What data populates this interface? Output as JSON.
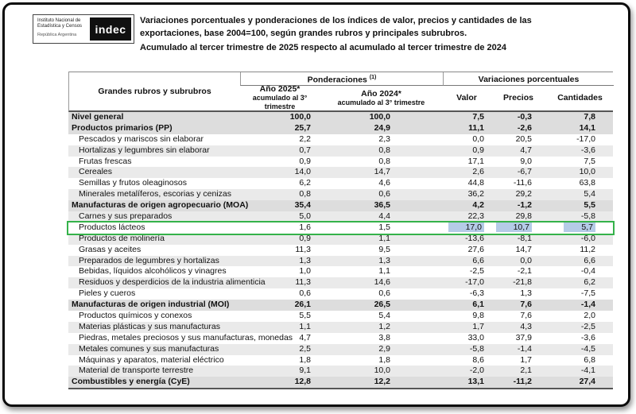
{
  "colors": {
    "highlight_border": "#35b24a",
    "selection_blue": "#b5cbe7",
    "stripe": "#eaeaea",
    "section_stripe": "#dddddd"
  },
  "logo": {
    "org_line1": "Instituto Nacional de",
    "org_line2": "Estadística y Censos",
    "org_line3": "República Argentina",
    "brand": "indec"
  },
  "titles": {
    "line1": "Variaciones porcentuales y ponderaciones de los índices de valor, precios y cantidades de las",
    "line2": "exportaciones, base 2004=100, según grandes rubros y principales subrubros.",
    "line3": "Acumulado al tercer trimestre de 2025 respecto al acumulado al tercer trimestre de 2024"
  },
  "table": {
    "label_header": "Grandes rubros y subrubros",
    "groups": {
      "ponderaciones": "Ponderaciones ",
      "ponderaciones_note": "(1)",
      "variaciones": "Variaciones porcentuales"
    },
    "columns": {
      "p2025_l1": "Año 2025*",
      "p2025_l2": "acumulado al 3° trimestre",
      "p2024_l1": "Año 2024*",
      "p2024_l2": "acumulado al 3° trimestre",
      "valor": "Valor",
      "precios": "Precios",
      "cantidades": "Cantidades"
    },
    "rows": [
      {
        "label": "Nivel general",
        "bold": true,
        "highlight": false,
        "p2025": "100,0",
        "p2024": "100,0",
        "valor": "7,5",
        "precios": "-0,3",
        "cantidades": "7,8"
      },
      {
        "label": "Productos primarios (PP)",
        "bold": true,
        "highlight": false,
        "p2025": "25,7",
        "p2024": "24,9",
        "valor": "11,1",
        "precios": "-2,6",
        "cantidades": "14,1"
      },
      {
        "label": "Pescados y mariscos sin elaborar",
        "bold": false,
        "highlight": false,
        "p2025": "2,2",
        "p2024": "2,3",
        "valor": "0,0",
        "precios": "20,5",
        "cantidades": "-17,0"
      },
      {
        "label": "Hortalizas y legumbres sin elaborar",
        "bold": false,
        "highlight": false,
        "p2025": "0,7",
        "p2024": "0,8",
        "valor": "0,9",
        "precios": "4,7",
        "cantidades": "-3,6"
      },
      {
        "label": "Frutas frescas",
        "bold": false,
        "highlight": false,
        "p2025": "0,9",
        "p2024": "0,8",
        "valor": "17,1",
        "precios": "9,0",
        "cantidades": "7,5"
      },
      {
        "label": "Cereales",
        "bold": false,
        "highlight": false,
        "p2025": "14,0",
        "p2024": "14,7",
        "valor": "2,6",
        "precios": "-6,7",
        "cantidades": "10,0"
      },
      {
        "label": "Semillas y frutos oleaginosos",
        "bold": false,
        "highlight": false,
        "p2025": "6,2",
        "p2024": "4,6",
        "valor": "44,8",
        "precios": "-11,6",
        "cantidades": "63,8"
      },
      {
        "label": "Minerales metalíferos, escorias y cenizas",
        "bold": false,
        "highlight": false,
        "p2025": "0,8",
        "p2024": "0,6",
        "valor": "36,2",
        "precios": "29,2",
        "cantidades": "5,4"
      },
      {
        "label": "Manufacturas de origen agropecuario (MOA)",
        "bold": true,
        "highlight": false,
        "p2025": "35,4",
        "p2024": "36,5",
        "valor": "4,2",
        "precios": "-1,2",
        "cantidades": "5,5"
      },
      {
        "label": "Carnes y sus preparados",
        "bold": false,
        "highlight": false,
        "p2025": "5,0",
        "p2024": "4,4",
        "valor": "22,3",
        "precios": "29,8",
        "cantidades": "-5,8"
      },
      {
        "label": "Productos lácteos",
        "bold": false,
        "highlight": true,
        "p2025": "1,6",
        "p2024": "1,5",
        "valor": "17,0",
        "precios": "10,7",
        "cantidades": "5,7"
      },
      {
        "label": "Productos de molinería",
        "bold": false,
        "highlight": false,
        "p2025": "0,9",
        "p2024": "1,1",
        "valor": "-13,6",
        "precios": "-8,1",
        "cantidades": "-6,0"
      },
      {
        "label": "Grasas y aceites",
        "bold": false,
        "highlight": false,
        "p2025": "11,3",
        "p2024": "9,5",
        "valor": "27,6",
        "precios": "14,7",
        "cantidades": "11,2"
      },
      {
        "label": "Preparados de legumbres y hortalizas",
        "bold": false,
        "highlight": false,
        "p2025": "1,3",
        "p2024": "1,3",
        "valor": "6,6",
        "precios": "0,0",
        "cantidades": "6,6"
      },
      {
        "label": "Bebidas, líquidos alcohólicos y vinagres",
        "bold": false,
        "highlight": false,
        "p2025": "1,0",
        "p2024": "1,1",
        "valor": "-2,5",
        "precios": "-2,1",
        "cantidades": "-0,4"
      },
      {
        "label": "Residuos y desperdicios de la industria alimenticia",
        "bold": false,
        "highlight": false,
        "p2025": "11,3",
        "p2024": "14,6",
        "valor": "-17,0",
        "precios": "-21,8",
        "cantidades": "6,2"
      },
      {
        "label": "Pieles y cueros",
        "bold": false,
        "highlight": false,
        "p2025": "0,6",
        "p2024": "0,6",
        "valor": "-6,3",
        "precios": "1,3",
        "cantidades": "-7,5"
      },
      {
        "label": "Manufacturas de origen industrial (MOI)",
        "bold": true,
        "highlight": false,
        "p2025": "26,1",
        "p2024": "26,5",
        "valor": "6,1",
        "precios": "7,6",
        "cantidades": "-1,4"
      },
      {
        "label": "Productos químicos y conexos",
        "bold": false,
        "highlight": false,
        "p2025": "5,5",
        "p2024": "5,4",
        "valor": "9,8",
        "precios": "7,6",
        "cantidades": "2,0"
      },
      {
        "label": "Materias plásticas y sus manufacturas",
        "bold": false,
        "highlight": false,
        "p2025": "1,1",
        "p2024": "1,2",
        "valor": "1,7",
        "precios": "4,3",
        "cantidades": "-2,5"
      },
      {
        "label": "Piedras, metales preciosos y sus manufacturas, monedas",
        "bold": false,
        "highlight": false,
        "p2025": "4,7",
        "p2024": "3,8",
        "valor": "33,0",
        "precios": "37,9",
        "cantidades": "-3,6"
      },
      {
        "label": "Metales comunes y sus manufacturas",
        "bold": false,
        "highlight": false,
        "p2025": "2,5",
        "p2024": "2,9",
        "valor": "-5,8",
        "precios": "-1,4",
        "cantidades": "-4,5"
      },
      {
        "label": "Máquinas y aparatos, material eléctrico",
        "bold": false,
        "highlight": false,
        "p2025": "1,8",
        "p2024": "1,8",
        "valor": "8,6",
        "precios": "1,7",
        "cantidades": "6,8"
      },
      {
        "label": "Material de transporte terrestre",
        "bold": false,
        "highlight": false,
        "p2025": "9,1",
        "p2024": "10,0",
        "valor": "-2,0",
        "precios": "2,1",
        "cantidades": "-4,1"
      },
      {
        "label": "Combustibles y energía (CyE)",
        "bold": true,
        "highlight": false,
        "p2025": "12,8",
        "p2024": "12,2",
        "valor": "13,1",
        "precios": "-11,2",
        "cantidades": "27,4"
      }
    ]
  }
}
